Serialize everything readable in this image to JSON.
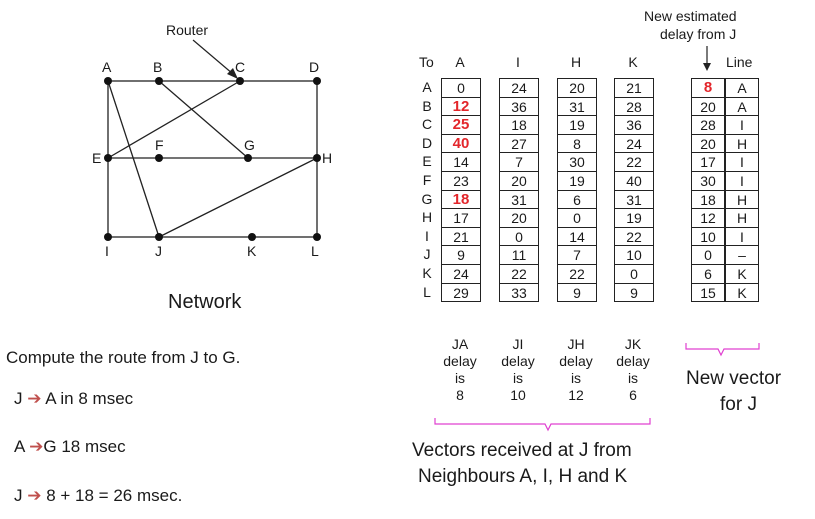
{
  "network": {
    "router_label": "Router",
    "caption": "Network",
    "nodes": [
      "A",
      "B",
      "C",
      "D",
      "E",
      "F",
      "G",
      "H",
      "I",
      "J",
      "K",
      "L"
    ]
  },
  "table": {
    "to_label": "To",
    "rows": [
      "A",
      "B",
      "C",
      "D",
      "E",
      "F",
      "G",
      "H",
      "I",
      "J",
      "K",
      "L"
    ],
    "columns": [
      {
        "head": "A",
        "values": [
          "0",
          "12",
          "25",
          "40",
          "14",
          "23",
          "18",
          "17",
          "21",
          "9",
          "24",
          "29"
        ],
        "highlight": [
          1,
          2,
          3,
          6
        ],
        "footer": [
          "JA",
          "delay",
          "is",
          "8"
        ]
      },
      {
        "head": "I",
        "values": [
          "24",
          "36",
          "18",
          "27",
          "7",
          "20",
          "31",
          "20",
          "0",
          "11",
          "22",
          "33"
        ],
        "highlight": [],
        "footer": [
          "JI",
          "delay",
          "is",
          "10"
        ]
      },
      {
        "head": "H",
        "values": [
          "20",
          "31",
          "19",
          "8",
          "30",
          "19",
          "6",
          "0",
          "14",
          "7",
          "22",
          "9"
        ],
        "highlight": [],
        "footer": [
          "JH",
          "delay",
          "is",
          "12"
        ]
      },
      {
        "head": "K",
        "values": [
          "21",
          "28",
          "36",
          "24",
          "22",
          "40",
          "31",
          "19",
          "22",
          "10",
          "0",
          "9"
        ],
        "highlight": [],
        "footer": [
          "JK",
          "delay",
          "is",
          "6"
        ]
      }
    ],
    "new_vector": {
      "title_line1": "New estimated",
      "title_line2": "delay from J",
      "line_label": "Line",
      "delays": [
        "8",
        "20",
        "28",
        "20",
        "17",
        "30",
        "18",
        "12",
        "10",
        "0",
        "6",
        "15"
      ],
      "lines": [
        "A",
        "A",
        "I",
        "H",
        "I",
        "I",
        "H",
        "H",
        "I",
        "–",
        "K",
        "K"
      ],
      "highlight": [
        0
      ]
    },
    "vectors_caption_line1": "Vectors received at J from",
    "vectors_caption_line2": "Neighbours A, I, H and K",
    "new_vector_caption_line1": "New vector",
    "new_vector_caption_line2": "for J"
  },
  "computation": {
    "title": "Compute the route from J to G.",
    "steps": [
      {
        "from": "J",
        "text": "A in 8 msec"
      },
      {
        "from": "A",
        "text": "G 18 msec"
      },
      {
        "from": "J",
        "text": "8 + 18 = 26 msec."
      }
    ]
  },
  "colors": {
    "highlight": "#e3262b",
    "arrow": "#c0504d",
    "brace": "#e040d0"
  }
}
